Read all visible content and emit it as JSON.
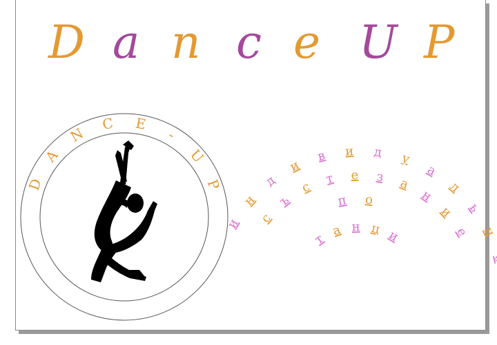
{
  "colors": {
    "orange": "#e39a33",
    "purple": "#a4499c",
    "pink": "#d874d0",
    "ink": "#000000",
    "frame": "#555555"
  },
  "title": {
    "letters": [
      "D",
      "a",
      "n",
      "c",
      "e",
      "U",
      "P"
    ],
    "letter_colors": [
      "orange",
      "purple",
      "orange",
      "purple",
      "orange",
      "purple",
      "orange"
    ]
  },
  "logo": {
    "ring_text": [
      "D",
      "A",
      "N",
      "C",
      "E",
      "-",
      "U",
      "P"
    ],
    "silhouette": "dancer-silhouette"
  },
  "slogan": {
    "line1": [
      "и",
      "н",
      "д",
      "и",
      "в",
      "и",
      "д",
      "у",
      "а",
      "л",
      "ь",
      "н",
      "о"
    ],
    "line2": [
      "с",
      "ъ",
      "с",
      "т",
      "е",
      "з",
      "а",
      "н",
      "и",
      "е"
    ],
    "line3": [
      "п",
      "о"
    ],
    "line4": [
      "т",
      "а",
      "н",
      "ц",
      "и"
    ]
  }
}
